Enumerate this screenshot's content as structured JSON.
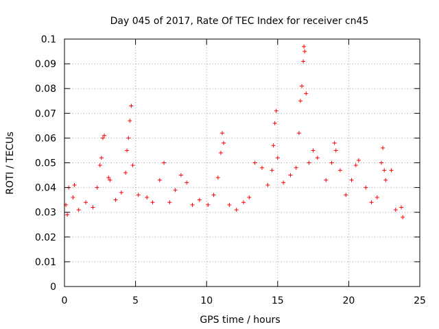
{
  "chart_data": {
    "type": "scatter",
    "title": "Day 045 of 2017, Rate Of TEC Index for receiver cn45",
    "xlabel": "GPS time / hours",
    "ylabel": "ROTI / TECUs",
    "xlim": [
      0,
      25
    ],
    "ylim": [
      0,
      0.1
    ],
    "x_ticks": [
      0,
      5,
      10,
      15,
      20,
      25
    ],
    "x_tick_labels": [
      "0",
      "5",
      "10",
      "15",
      "20",
      "25"
    ],
    "y_ticks": [
      0,
      0.01,
      0.02,
      0.03,
      0.04,
      0.05,
      0.06,
      0.07,
      0.08,
      0.09,
      0.1
    ],
    "y_tick_labels": [
      "0",
      "0.01",
      "0.02",
      "0.03",
      "0.04",
      "0.05",
      "0.06",
      "0.07",
      "0.08",
      "0.09",
      "0.1"
    ],
    "grid": true,
    "marker": "+",
    "color": "#ff0000",
    "series": [
      {
        "name": "ROTI",
        "points": [
          [
            0.1,
            0.033
          ],
          [
            0.2,
            0.029
          ],
          [
            0.3,
            0.04
          ],
          [
            0.6,
            0.036
          ],
          [
            0.7,
            0.041
          ],
          [
            1.0,
            0.031
          ],
          [
            1.5,
            0.034
          ],
          [
            2.0,
            0.032
          ],
          [
            2.3,
            0.04
          ],
          [
            2.5,
            0.049
          ],
          [
            2.6,
            0.052
          ],
          [
            2.7,
            0.06
          ],
          [
            2.8,
            0.061
          ],
          [
            3.1,
            0.044
          ],
          [
            3.2,
            0.043
          ],
          [
            3.6,
            0.035
          ],
          [
            4.0,
            0.038
          ],
          [
            4.3,
            0.046
          ],
          [
            4.4,
            0.055
          ],
          [
            4.5,
            0.06
          ],
          [
            4.6,
            0.067
          ],
          [
            4.7,
            0.073
          ],
          [
            4.8,
            0.049
          ],
          [
            5.2,
            0.037
          ],
          [
            5.8,
            0.036
          ],
          [
            6.2,
            0.034
          ],
          [
            6.7,
            0.043
          ],
          [
            7.0,
            0.05
          ],
          [
            7.4,
            0.034
          ],
          [
            7.8,
            0.039
          ],
          [
            8.2,
            0.045
          ],
          [
            8.6,
            0.042
          ],
          [
            9.0,
            0.033
          ],
          [
            9.5,
            0.035
          ],
          [
            10.1,
            0.033
          ],
          [
            10.5,
            0.037
          ],
          [
            10.8,
            0.044
          ],
          [
            11.0,
            0.054
          ],
          [
            11.1,
            0.062
          ],
          [
            11.2,
            0.058
          ],
          [
            11.6,
            0.033
          ],
          [
            12.1,
            0.031
          ],
          [
            12.6,
            0.034
          ],
          [
            13.0,
            0.036
          ],
          [
            13.4,
            0.05
          ],
          [
            13.9,
            0.048
          ],
          [
            14.3,
            0.041
          ],
          [
            14.6,
            0.047
          ],
          [
            14.7,
            0.057
          ],
          [
            14.8,
            0.066
          ],
          [
            14.9,
            0.071
          ],
          [
            15.0,
            0.052
          ],
          [
            15.4,
            0.042
          ],
          [
            15.9,
            0.045
          ],
          [
            16.3,
            0.048
          ],
          [
            16.5,
            0.062
          ],
          [
            16.6,
            0.075
          ],
          [
            16.7,
            0.081
          ],
          [
            16.8,
            0.091
          ],
          [
            16.85,
            0.097
          ],
          [
            16.9,
            0.095
          ],
          [
            17.0,
            0.078
          ],
          [
            17.2,
            0.05
          ],
          [
            17.5,
            0.055
          ],
          [
            17.8,
            0.052
          ],
          [
            18.4,
            0.043
          ],
          [
            18.8,
            0.05
          ],
          [
            19.0,
            0.058
          ],
          [
            19.1,
            0.055
          ],
          [
            19.4,
            0.047
          ],
          [
            19.8,
            0.037
          ],
          [
            20.2,
            0.043
          ],
          [
            20.5,
            0.049
          ],
          [
            20.7,
            0.051
          ],
          [
            21.2,
            0.04
          ],
          [
            21.6,
            0.034
          ],
          [
            22.0,
            0.036
          ],
          [
            22.3,
            0.05
          ],
          [
            22.4,
            0.056
          ],
          [
            22.5,
            0.047
          ],
          [
            22.6,
            0.043
          ],
          [
            23.0,
            0.047
          ],
          [
            23.3,
            0.031
          ],
          [
            23.7,
            0.032
          ],
          [
            23.8,
            0.028
          ]
        ]
      }
    ]
  }
}
